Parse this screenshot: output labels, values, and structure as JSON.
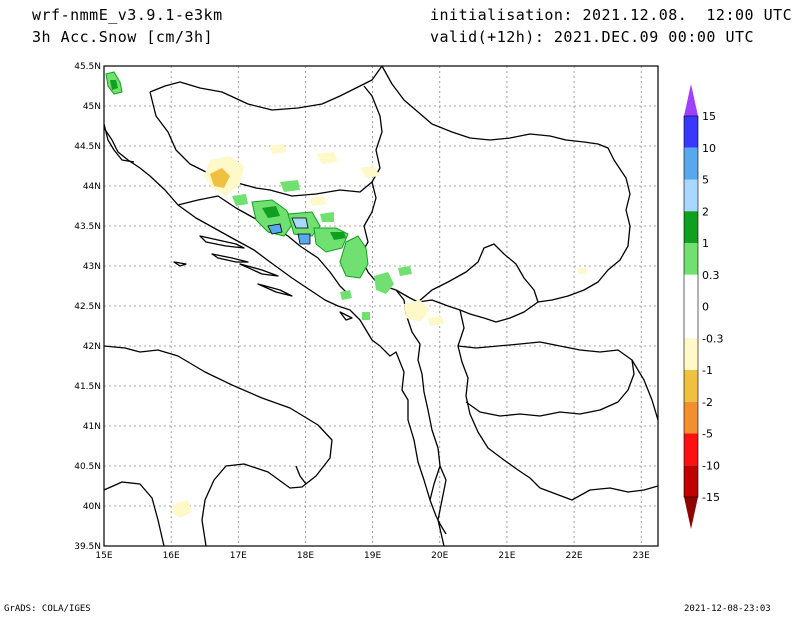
{
  "header": {
    "model": "wrf-nmmE_v3.9.1-e3km",
    "field": "3h Acc.Snow [cm/3h]",
    "init": "initialisation: 2021.12.08.  12:00 UTC",
    "valid": "valid(+12h): 2021.DEC.09 00:00 UTC"
  },
  "footer": {
    "credit": "GrADS: COLA/IGES",
    "timestamp": "2021-12-08-23:03"
  },
  "map": {
    "lon_range": [
      15,
      23.25
    ],
    "lat_range": [
      39.5,
      45.5
    ],
    "lon_ticks": [
      "15E",
      "16E",
      "17E",
      "18E",
      "19E",
      "20E",
      "21E",
      "22E",
      "23E"
    ],
    "lat_ticks": [
      "39.5N",
      "40N",
      "40.5N",
      "41N",
      "41.5N",
      "42N",
      "42.5N",
      "43N",
      "43.5N",
      "44N",
      "44.5N",
      "45N",
      "45.5N"
    ],
    "grid": true
  },
  "colorbar": {
    "labels": [
      "15",
      "10",
      "5",
      "2",
      "1",
      "0.3",
      "0",
      "-0.3",
      "-1",
      "-2",
      "-5",
      "-10",
      "-15"
    ],
    "colors": [
      "#a040ff",
      "#3838ff",
      "#58a8f0",
      "#a8d8ff",
      "#10a020",
      "#70e070",
      "#ffffff",
      "#fff8c8",
      "#f0c040",
      "#f09030",
      "#ff1010",
      "#c00000",
      "#900000"
    ]
  }
}
